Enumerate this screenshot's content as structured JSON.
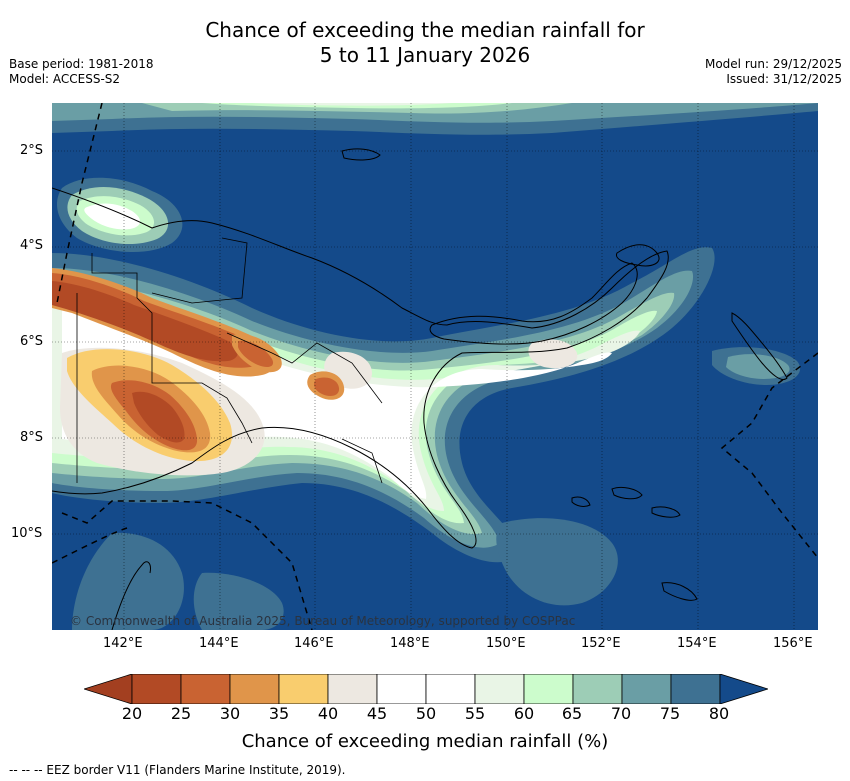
{
  "title_line1": "Chance of exceeding the median rainfall for",
  "title_line2": "5 to 11 January 2026",
  "meta": {
    "base_period": "Base period: 1981-2018",
    "model": "Model: ACCESS-S2",
    "model_run": "Model run: 29/12/2025",
    "issued": "Issued: 31/12/2025"
  },
  "lat_labels": [
    "2°S",
    "4°S",
    "6°S",
    "8°S",
    "10°S"
  ],
  "lon_labels": [
    "142°E",
    "144°E",
    "146°E",
    "148°E",
    "150°E",
    "152°E",
    "154°E",
    "156°E"
  ],
  "credit": "© Commonwealth of Australia 2025, Bureau of Meteorology, supported by COSPPac",
  "colorbar": {
    "label": "Chance of exceeding median rainfall (%)",
    "ticks": [
      "20",
      "25",
      "30",
      "35",
      "40",
      "45",
      "50",
      "55",
      "60",
      "65",
      "70",
      "75",
      "80"
    ],
    "colors": [
      "#a33f20",
      "#b24a25",
      "#c96332",
      "#e0954a",
      "#f9cd6e",
      "#ede8e1",
      "#ffffff",
      "#ffffff",
      "#e9f5e6",
      "#ccfccc",
      "#9dcdb6",
      "#6a9ea5",
      "#3e7192",
      "#144a8a"
    ]
  },
  "footer": "--  --  -- EEZ border V11 (Flanders Marine Institute, 2019)."
}
